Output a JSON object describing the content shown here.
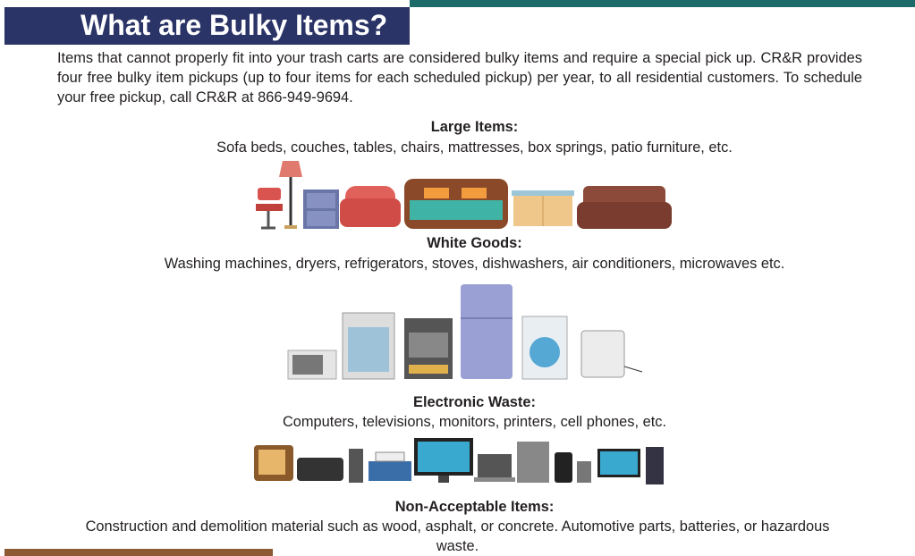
{
  "header": {
    "title": "What are Bulky Items?"
  },
  "intro": "Items that cannot properly fit into your trash carts are considered bulky items and require a special pick up. CR&R provides four free bulky item pickups (up to four items for each scheduled pickup) per year, to all residential customers. To schedule your free pickup, call CR&R at 866-949-9694.",
  "sections": [
    {
      "heading": "Large Items:",
      "text": "Sofa beds, couches, tables, chairs, mattresses, box springs, patio furniture, etc."
    },
    {
      "heading": "White Goods:",
      "text": "Washing machines, dryers, refrigerators, stoves, dishwashers, air conditioners, microwaves etc."
    },
    {
      "heading": "Electronic Waste:",
      "text": "Computers, televisions, monitors, printers, cell phones, etc."
    },
    {
      "heading": "Non-Acceptable Items:",
      "text": "Construction and demolition material such as wood, asphalt, or concrete. Automotive parts, batteries, or hazardous waste."
    }
  ]
}
